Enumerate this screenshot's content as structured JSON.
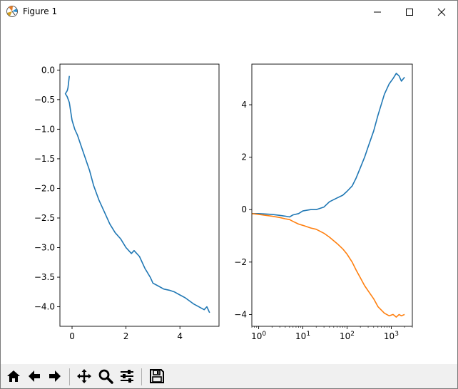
{
  "window": {
    "title": "Figure 1",
    "icon": "matplotlib-logo-icon",
    "controls": [
      "minimize-icon",
      "maximize-icon",
      "close-icon"
    ]
  },
  "toolbar": {
    "buttons": [
      {
        "name": "home-button",
        "icon": "home-icon"
      },
      {
        "name": "back-button",
        "icon": "arrow-left-icon"
      },
      {
        "name": "forward-button",
        "icon": "arrow-right-icon"
      },
      {
        "name": "pan-button",
        "icon": "move-icon"
      },
      {
        "name": "zoom-button",
        "icon": "zoom-icon"
      },
      {
        "name": "configure-subplots-button",
        "icon": "sliders-icon"
      },
      {
        "name": "save-button",
        "icon": "save-icon"
      }
    ]
  },
  "colors": {
    "series1": "#1f77b4",
    "series2": "#ff7f0e"
  },
  "chart_data": [
    {
      "type": "line",
      "title": "",
      "xlabel": "",
      "ylabel": "",
      "xlim": [
        -0.45,
        5.45
      ],
      "ylim": [
        -4.33,
        0.1
      ],
      "xticks": [
        "0",
        "2",
        "4"
      ],
      "xtick_values": [
        0,
        2,
        4
      ],
      "yticks": [
        "0.0",
        "−0.5",
        "−1.0",
        "−1.5",
        "−2.0",
        "−2.5",
        "−3.0",
        "−3.5",
        "−4.0"
      ],
      "ytick_values": [
        0,
        -0.5,
        -1.0,
        -1.5,
        -2.0,
        -2.5,
        -3.0,
        -3.5,
        -4.0
      ],
      "series": [
        {
          "color": "#1f77b4",
          "x": [
            -0.1,
            -0.15,
            -0.18,
            -0.25,
            -0.18,
            -0.1,
            -0.05,
            0.0,
            0.1,
            0.2,
            0.35,
            0.5,
            0.65,
            0.8,
            1.0,
            1.2,
            1.4,
            1.6,
            1.8,
            2.0,
            2.2,
            2.3,
            2.5,
            2.7,
            2.9,
            3.0,
            3.2,
            3.4,
            3.6,
            3.8,
            4.0,
            4.2,
            4.5,
            4.7,
            4.9,
            5.0,
            5.1
          ],
          "y": [
            -0.1,
            -0.3,
            -0.35,
            -0.4,
            -0.45,
            -0.55,
            -0.7,
            -0.85,
            -1.0,
            -1.1,
            -1.3,
            -1.5,
            -1.7,
            -1.95,
            -2.2,
            -2.4,
            -2.6,
            -2.75,
            -2.85,
            -3.0,
            -3.1,
            -3.05,
            -3.15,
            -3.35,
            -3.5,
            -3.6,
            -3.65,
            -3.7,
            -3.72,
            -3.75,
            -3.8,
            -3.85,
            -3.95,
            -4.0,
            -4.05,
            -4.0,
            -4.1
          ]
        }
      ]
    },
    {
      "type": "line",
      "title": "",
      "xlabel": "",
      "ylabel": "",
      "xscale": "log",
      "xlim": [
        0.7,
        3000
      ],
      "ylim": [
        -4.45,
        5.55
      ],
      "xticks": [
        "10^0",
        "10^1",
        "10^2",
        "10^3"
      ],
      "xtick_values": [
        1,
        10,
        100,
        1000
      ],
      "yticks": [
        "4",
        "2",
        "0",
        "−2",
        "−4"
      ],
      "ytick_values": [
        4,
        2,
        0,
        -2,
        -4
      ],
      "series": [
        {
          "color": "#1f77b4",
          "x": [
            0.7,
            1,
            2,
            3,
            4,
            5,
            6,
            8,
            10,
            15,
            20,
            30,
            40,
            60,
            80,
            100,
            130,
            160,
            200,
            250,
            300,
            400,
            500,
            700,
            900,
            1100,
            1300,
            1500,
            1700,
            2000
          ],
          "y": [
            -0.15,
            -0.15,
            -0.18,
            -0.22,
            -0.25,
            -0.28,
            -0.2,
            -0.15,
            -0.05,
            0.0,
            0.0,
            0.1,
            0.3,
            0.45,
            0.55,
            0.7,
            0.9,
            1.2,
            1.6,
            2.0,
            2.4,
            3.0,
            3.6,
            4.4,
            4.8,
            5.0,
            5.2,
            5.1,
            4.9,
            5.05
          ]
        },
        {
          "color": "#ff7f0e",
          "x": [
            0.7,
            1,
            2,
            3,
            4,
            5,
            6,
            8,
            10,
            15,
            20,
            30,
            40,
            60,
            80,
            100,
            130,
            160,
            200,
            250,
            300,
            400,
            500,
            700,
            900,
            1100,
            1300,
            1500,
            1700,
            2000
          ],
          "y": [
            -0.15,
            -0.18,
            -0.25,
            -0.3,
            -0.35,
            -0.38,
            -0.45,
            -0.55,
            -0.6,
            -0.7,
            -0.75,
            -0.9,
            -1.05,
            -1.3,
            -1.5,
            -1.7,
            -2.0,
            -2.3,
            -2.6,
            -2.9,
            -3.1,
            -3.4,
            -3.7,
            -3.95,
            -4.05,
            -4.0,
            -4.1,
            -4.0,
            -4.05,
            -4.0
          ]
        }
      ]
    }
  ]
}
